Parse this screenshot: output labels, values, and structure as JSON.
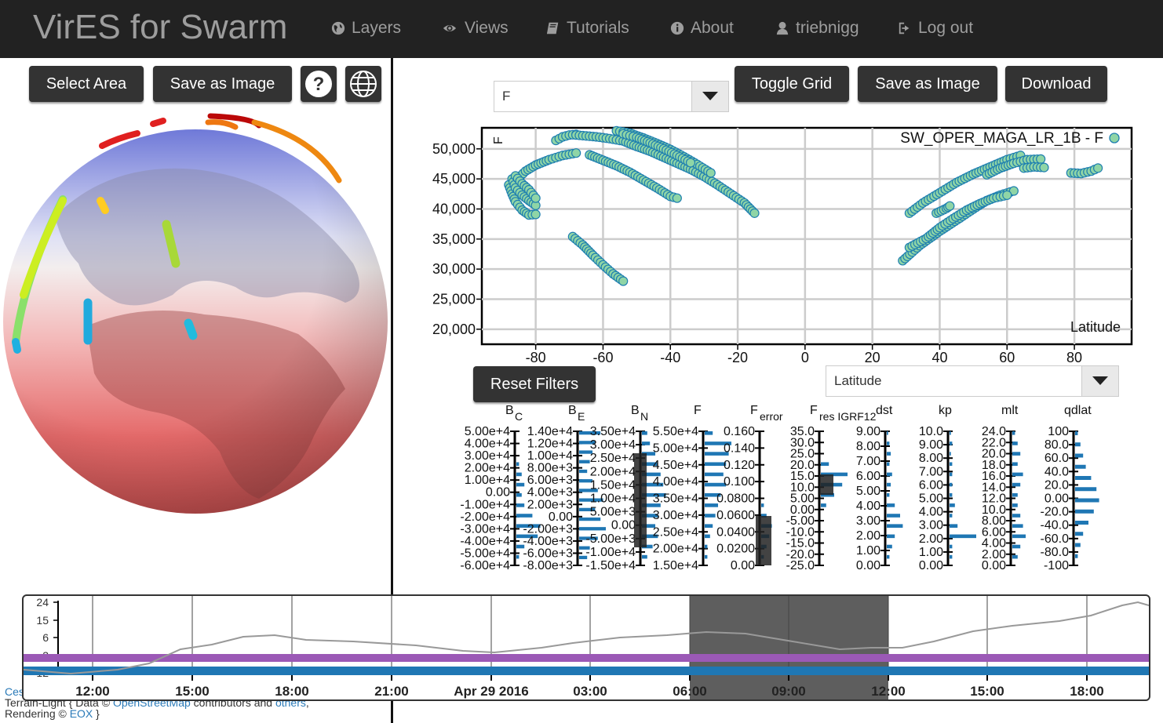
{
  "navbar": {
    "brand": "VirES for Swarm",
    "items": [
      {
        "label": "Layers",
        "icon": "globe-icon"
      },
      {
        "label": "Views",
        "icon": "eye-icon"
      },
      {
        "label": "Tutorials",
        "icon": "book-icon"
      },
      {
        "label": "About",
        "icon": "info-icon"
      },
      {
        "label": "triebnigg",
        "icon": "user-icon"
      },
      {
        "label": "Log out",
        "icon": "logout-icon"
      }
    ]
  },
  "globe_panel": {
    "select_area_label": "Select Area",
    "save_image_label": "Save as Image",
    "help_label": "?",
    "attribution": {
      "line1_link": "Ces",
      "line2_prefix": "Terrain-Light { Data © ",
      "line2_link1": "OpenStreetMap",
      "line2_mid": " contributors and ",
      "line2_link2": "others",
      "line2_suffix": ",",
      "line3_prefix": "Rendering © ",
      "line3_link": "EOX",
      "line3_suffix": " }"
    }
  },
  "plot_panel": {
    "y_param_select": "F",
    "toggle_grid_label": "Toggle Grid",
    "save_image_label": "Save as Image",
    "download_label": "Download",
    "reset_filters_label": "Reset Filters",
    "x_param_select": "Latitude",
    "colors": {
      "point_fill": "#8fd5a6",
      "point_stroke": "#1e7fb0",
      "button_bg": "#333333"
    }
  },
  "chart_data": {
    "type": "scatter",
    "legend": "SW_OPER_MAGA_LR_1B - F",
    "ylabel": "F",
    "xlabel": "Latitude",
    "ylim": [
      17500,
      53500
    ],
    "xlim": [
      -96,
      97
    ],
    "x_ticks": [
      -80,
      -60,
      -40,
      -20,
      0,
      20,
      40,
      60,
      80
    ],
    "y_ticks": [
      "20,000",
      "25,000",
      "30,000",
      "35,000",
      "40,000",
      "45,000",
      "50,000"
    ],
    "grid": true,
    "series": [
      {
        "name": "SW_OPER_MAGA_LR_1B - F",
        "segments": [
          [
            [
              -74,
              51.4
            ],
            [
              -72,
              52.0
            ],
            [
              -70,
              52.3
            ],
            [
              -68,
              52.4
            ]
          ],
          [
            [
              -68,
              52.3
            ],
            [
              -62,
              52.0
            ],
            [
              -58,
              51.7
            ],
            [
              -54,
              51.3
            ],
            [
              -50,
              50.4
            ],
            [
              -46,
              49.6
            ],
            [
              -42,
              48.6
            ],
            [
              -38,
              47.6
            ],
            [
              -34,
              46.6
            ],
            [
              -30,
              45.4
            ],
            [
              -26,
              44.0
            ],
            [
              -22,
              42.5
            ],
            [
              -18,
              41.0
            ],
            [
              -15,
              39.3
            ]
          ],
          [
            [
              -56,
              53.0
            ],
            [
              -52,
              52.6
            ],
            [
              -48,
              51.8
            ],
            [
              -44,
              50.9
            ],
            [
              -40,
              49.9
            ],
            [
              -36,
              48.7
            ],
            [
              -32,
              47.4
            ],
            [
              -28,
              46.0
            ]
          ],
          [
            [
              -54,
              52.5
            ],
            [
              -50,
              51.9
            ],
            [
              -46,
              51.0
            ],
            [
              -42,
              50.0
            ],
            [
              -38,
              48.9
            ],
            [
              -34,
              47.7
            ]
          ],
          [
            [
              -86,
              44.7
            ],
            [
              -83,
              46.3
            ],
            [
              -80,
              47.3
            ],
            [
              -76,
              48.2
            ],
            [
              -72,
              48.9
            ],
            [
              -68,
              49.3
            ]
          ],
          [
            [
              -64,
              49.0
            ],
            [
              -60,
              48.1
            ],
            [
              -56,
              47.2
            ],
            [
              -52,
              46.1
            ],
            [
              -48,
              44.8
            ],
            [
              -44,
              43.5
            ],
            [
              -40,
              42.1
            ],
            [
              -38,
              41.8
            ]
          ],
          [
            [
              -88,
              44.0
            ],
            [
              -87,
              42.5
            ],
            [
              -86,
              41.2
            ],
            [
              -84,
              39.8
            ],
            [
              -82,
              39.0
            ],
            [
              -80,
              39.1
            ]
          ],
          [
            [
              -87,
              45.0
            ],
            [
              -86,
              43.5
            ],
            [
              -84,
              42.3
            ],
            [
              -82,
              41.4
            ],
            [
              -80,
              40.6
            ]
          ],
          [
            [
              -86,
              45.5
            ],
            [
              -84,
              44.2
            ],
            [
              -82,
              43.2
            ],
            [
              -80,
              41.8
            ]
          ],
          [
            [
              -69,
              35.4
            ],
            [
              -66,
              34.0
            ],
            [
              -63,
              32.3
            ],
            [
              -60,
              30.7
            ],
            [
              -57,
              29.2
            ],
            [
              -54,
              28.0
            ]
          ],
          [
            [
              31,
              39.3
            ],
            [
              35,
              41.0
            ],
            [
              40,
              42.7
            ],
            [
              45,
              44.4
            ],
            [
              50,
              45.8
            ],
            [
              55,
              47.0
            ],
            [
              60,
              48.2
            ],
            [
              64,
              48.9
            ]
          ],
          [
            [
              54,
              45.7
            ],
            [
              58,
              46.8
            ],
            [
              62,
              47.6
            ],
            [
              66,
              48.2
            ],
            [
              70,
              48.3
            ]
          ],
          [
            [
              65,
              46.8
            ],
            [
              68,
              47.0
            ],
            [
              71,
              46.9
            ]
          ],
          [
            [
              29,
              31.4
            ],
            [
              34,
              33.9
            ],
            [
              40,
              36.3
            ],
            [
              46,
              38.5
            ],
            [
              50,
              40.0
            ],
            [
              54,
              41.4
            ],
            [
              58,
              42.3
            ],
            [
              62,
              43.0
            ]
          ],
          [
            [
              31,
              33.6
            ],
            [
              36,
              35.1
            ],
            [
              40,
              36.9
            ],
            [
              44,
              38.4
            ],
            [
              48,
              39.8
            ],
            [
              52,
              40.9
            ],
            [
              56,
              41.8
            ],
            [
              60,
              42.3
            ]
          ],
          [
            [
              39,
              39.3
            ],
            [
              42,
              40.1
            ],
            [
              43,
              40.5
            ]
          ],
          [
            [
              79,
              46.0
            ],
            [
              82,
              45.9
            ],
            [
              85,
              46.3
            ],
            [
              87,
              46.8
            ]
          ]
        ]
      }
    ]
  },
  "filters": {
    "panels": [
      {
        "name": "B",
        "sub": "C",
        "ticks": [
          "5.00e+4",
          "4.00e+4",
          "3.00e+4",
          "2.00e+4",
          "1.00e+4",
          "0.00",
          "-1.00e+4",
          "-2.00e+4",
          "-3.00e+4",
          "-4.00e+4",
          "-5.00e+4",
          "-6.00e+4"
        ]
      },
      {
        "name": "B",
        "sub": "E",
        "ticks": [
          "1.40e+4",
          "1.20e+4",
          "1.00e+4",
          "8.00e+3",
          "6.00e+3",
          "4.00e+3",
          "2.00e+3",
          "0.00",
          "-2.00e+3",
          "-4.00e+3",
          "-6.00e+3",
          "-8.00e+3"
        ]
      },
      {
        "name": "B",
        "sub": "N",
        "ticks": [
          "3.50e+4",
          "3.00e+4",
          "2.50e+4",
          "2.00e+4",
          "1.50e+4",
          "1.00e+4",
          "5.00e+3",
          "0.00",
          "-5.00e+3",
          "-1.00e+4",
          "-1.50e+4"
        ]
      },
      {
        "name": "F",
        "sub": "",
        "ticks": [
          "5.50e+4",
          "5.00e+4",
          "4.50e+4",
          "4.00e+4",
          "3.50e+4",
          "3.00e+4",
          "2.50e+4",
          "2.00e+4",
          "1.50e+4"
        ]
      },
      {
        "name": "F",
        "sub": "error",
        "ticks": [
          "0.160",
          "0.140",
          "0.120",
          "0.100",
          "0.0800",
          "0.0600",
          "0.0400",
          "0.0200",
          "0.00"
        ]
      },
      {
        "name": "F",
        "sub": "res IGRF12",
        "ticks": [
          "35.0",
          "30.0",
          "25.0",
          "20.0",
          "15.0",
          "10.0",
          "5.00",
          "0.00",
          "-5.00",
          "-10.0",
          "-15.0",
          "-20.0",
          "-25.0"
        ]
      },
      {
        "name": "dst",
        "sub": "",
        "ticks": [
          "9.00",
          "8.00",
          "7.00",
          "6.00",
          "5.00",
          "4.00",
          "3.00",
          "2.00",
          "1.00",
          "0.00"
        ]
      },
      {
        "name": "kp",
        "sub": "",
        "ticks": [
          "10.0",
          "9.00",
          "8.00",
          "7.00",
          "6.00",
          "5.00",
          "4.00",
          "3.00",
          "2.00",
          "1.00",
          "0.00"
        ]
      },
      {
        "name": "mlt",
        "sub": "",
        "ticks": [
          "24.0",
          "22.0",
          "20.0",
          "18.0",
          "16.0",
          "14.0",
          "12.0",
          "10.0",
          "8.00",
          "6.00",
          "4.00",
          "2.00",
          "0.00"
        ]
      },
      {
        "name": "qdlat",
        "sub": "",
        "ticks": [
          "100",
          "80.0",
          "60.0",
          "40.0",
          "20.0",
          "0.00",
          "-20.0",
          "-40.0",
          "-60.0",
          "-80.0",
          "-100"
        ]
      }
    ]
  },
  "timeline": {
    "y_ticks": [
      "24",
      "15",
      "6",
      "-3",
      "-12"
    ],
    "x_ticks": [
      "12:00",
      "15:00",
      "18:00",
      "21:00",
      "Apr 29 2016",
      "03:00",
      "06:00",
      "09:00",
      "12:00",
      "15:00",
      "18:00"
    ],
    "colors": {
      "purple_band": "#9b59b6",
      "blue_band": "#1f77b4",
      "selection": "#555555"
    }
  }
}
